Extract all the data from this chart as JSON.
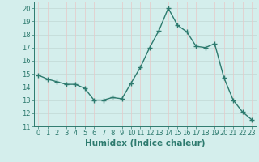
{
  "x": [
    0,
    1,
    2,
    3,
    4,
    5,
    6,
    7,
    8,
    9,
    10,
    11,
    12,
    13,
    14,
    15,
    16,
    17,
    18,
    19,
    20,
    21,
    22,
    23
  ],
  "y": [
    14.9,
    14.6,
    14.4,
    14.2,
    14.2,
    13.9,
    13.0,
    13.0,
    13.2,
    13.1,
    14.3,
    15.5,
    17.0,
    18.3,
    20.0,
    18.7,
    18.2,
    17.1,
    17.0,
    17.3,
    14.7,
    13.0,
    12.1,
    11.5
  ],
  "line_color": "#2d7a6e",
  "marker": "+",
  "marker_size": 4,
  "marker_lw": 1.0,
  "line_width": 1.0,
  "bg_color": "#d4eeec",
  "grid_color": "#c0d8d4",
  "grid_color2": "#e8c8c8",
  "xlabel": "Humidex (Indice chaleur)",
  "ylim": [
    11,
    20.5
  ],
  "xlim": [
    -0.5,
    23.5
  ],
  "yticks": [
    11,
    12,
    13,
    14,
    15,
    16,
    17,
    18,
    19,
    20
  ],
  "xticks": [
    0,
    1,
    2,
    3,
    4,
    5,
    6,
    7,
    8,
    9,
    10,
    11,
    12,
    13,
    14,
    15,
    16,
    17,
    18,
    19,
    20,
    21,
    22,
    23
  ],
  "font_color": "#2d7a6e",
  "tick_fontsize": 6.0,
  "label_fontsize": 7.5
}
